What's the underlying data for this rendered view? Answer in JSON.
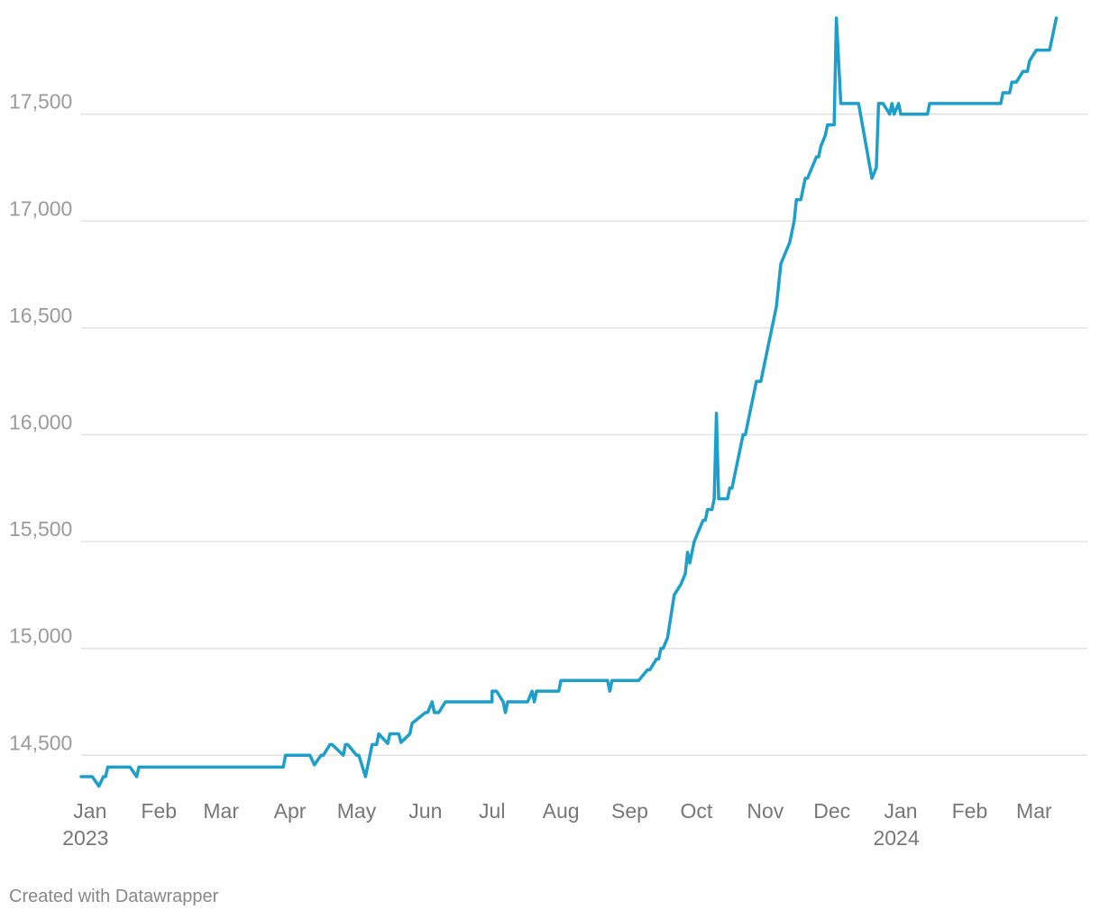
{
  "footer": {
    "credit": "Created with Datawrapper"
  },
  "colors": {
    "line": "#1d9fcb",
    "grid": "#e2e2e2",
    "tick_text": "#9b9b9b"
  },
  "chart_data": {
    "type": "line",
    "title": "",
    "xlabel": "",
    "ylabel": "",
    "ylim": [
      14400,
      17950
    ],
    "yticks": [
      14500,
      15000,
      15500,
      16000,
      16500,
      17000,
      17500
    ],
    "ytick_labels": [
      "14,500",
      "15,000",
      "15,500",
      "16,000",
      "16,500",
      "17,000",
      "17,500"
    ],
    "xrange": [
      "2022-12-28",
      "2024-03-25"
    ],
    "xticks": [
      {
        "date": "2023-01-01",
        "label": "Jan",
        "year": "2023"
      },
      {
        "date": "2023-02-01",
        "label": "Feb",
        "year": ""
      },
      {
        "date": "2023-03-01",
        "label": "Mar",
        "year": ""
      },
      {
        "date": "2023-04-01",
        "label": "Apr",
        "year": ""
      },
      {
        "date": "2023-05-01",
        "label": "May",
        "year": ""
      },
      {
        "date": "2023-06-01",
        "label": "Jun",
        "year": ""
      },
      {
        "date": "2023-07-01",
        "label": "Jul",
        "year": ""
      },
      {
        "date": "2023-08-01",
        "label": "Aug",
        "year": ""
      },
      {
        "date": "2023-09-01",
        "label": "Sep",
        "year": ""
      },
      {
        "date": "2023-10-01",
        "label": "Oct",
        "year": ""
      },
      {
        "date": "2023-11-01",
        "label": "Nov",
        "year": ""
      },
      {
        "date": "2023-12-01",
        "label": "Dec",
        "year": ""
      },
      {
        "date": "2024-01-01",
        "label": "Jan",
        "year": "2024"
      },
      {
        "date": "2024-02-01",
        "label": "Feb",
        "year": ""
      },
      {
        "date": "2024-03-01",
        "label": "Mar",
        "year": ""
      }
    ],
    "grid": true,
    "legend": "none",
    "series": [
      {
        "x": [
          "2022-12-28",
          "2023-01-02",
          "2023-01-05",
          "2023-01-07",
          "2023-01-08",
          "2023-01-09",
          "2023-01-10",
          "2023-01-19",
          "2023-01-22",
          "2023-01-23",
          "2023-01-31",
          "2023-02-28",
          "2023-03-29",
          "2023-03-30",
          "2023-04-05",
          "2023-04-10",
          "2023-04-12",
          "2023-04-15",
          "2023-04-16",
          "2023-04-19",
          "2023-04-20",
          "2023-04-25",
          "2023-04-26",
          "2023-04-27",
          "2023-05-01",
          "2023-05-02",
          "2023-05-05",
          "2023-05-08",
          "2023-05-09",
          "2023-05-10",
          "2023-05-11",
          "2023-05-15",
          "2023-05-16",
          "2023-05-20",
          "2023-05-21",
          "2023-05-25",
          "2023-05-26",
          "2023-06-01",
          "2023-06-02",
          "2023-06-04",
          "2023-06-05",
          "2023-06-07",
          "2023-06-10",
          "2023-07-01",
          "2023-07-01",
          "2023-07-03",
          "2023-07-06",
          "2023-07-07",
          "2023-07-08",
          "2023-07-17",
          "2023-07-19",
          "2023-07-20",
          "2023-07-21",
          "2023-07-31",
          "2023-08-01",
          "2023-08-22",
          "2023-08-23",
          "2023-08-24",
          "2023-09-05",
          "2023-09-09",
          "2023-09-10",
          "2023-09-13",
          "2023-09-14",
          "2023-09-15",
          "2023-09-16",
          "2023-09-18",
          "2023-09-21",
          "2023-09-24",
          "2023-09-26",
          "2023-09-27",
          "2023-09-28",
          "2023-09-30",
          "2023-10-02",
          "2023-10-04",
          "2023-10-05",
          "2023-10-06",
          "2023-10-08",
          "2023-10-09",
          "2023-10-10",
          "2023-10-11",
          "2023-10-14",
          "2023-10-15",
          "2023-10-16",
          "2023-10-17",
          "2023-10-18",
          "2023-10-22",
          "2023-10-23",
          "2023-10-24",
          "2023-10-26",
          "2023-10-28",
          "2023-10-30",
          "2023-11-01",
          "2023-11-03",
          "2023-11-04",
          "2023-11-06",
          "2023-11-08",
          "2023-11-12",
          "2023-11-14",
          "2023-11-15",
          "2023-11-17",
          "2023-11-19",
          "2023-11-20",
          "2023-11-22",
          "2023-11-24",
          "2023-11-25",
          "2023-11-26",
          "2023-11-28",
          "2023-11-29",
          "2023-12-02",
          "2023-12-03",
          "2023-12-04",
          "2023-12-05",
          "2023-12-08",
          "2023-12-09",
          "2023-12-10",
          "2023-12-12",
          "2023-12-13",
          "2023-12-19",
          "2023-12-21",
          "2023-12-22",
          "2023-12-24",
          "2023-12-27",
          "2023-12-28",
          "2023-12-29",
          "2023-12-31",
          "2024-01-01",
          "2024-01-02",
          "2024-01-04",
          "2024-01-13",
          "2024-01-14",
          "2024-02-03",
          "2024-02-04",
          "2024-02-15",
          "2024-02-16",
          "2024-02-17",
          "2024-02-18",
          "2024-02-19",
          "2024-02-20",
          "2024-02-22",
          "2024-02-25",
          "2024-02-27",
          "2024-02-28",
          "2024-03-02",
          "2024-03-03",
          "2024-03-08",
          "2024-03-11"
        ],
        "y": [
          14400,
          14400,
          14355,
          14400,
          14400,
          14445,
          14445,
          14445,
          14400,
          14445,
          14445,
          14445,
          14445,
          14500,
          14500,
          14500,
          14455,
          14500,
          14500,
          14550,
          14550,
          14500,
          14550,
          14550,
          14500,
          14500,
          14400,
          14550,
          14550,
          14550,
          14600,
          14555,
          14600,
          14600,
          14560,
          14600,
          14650,
          14700,
          14700,
          14750,
          14700,
          14700,
          14750,
          14750,
          14800,
          14800,
          14750,
          14700,
          14750,
          14750,
          14800,
          14750,
          14800,
          14800,
          14850,
          14850,
          14800,
          14850,
          14850,
          14900,
          14900,
          14950,
          14950,
          15000,
          15000,
          15050,
          15250,
          15300,
          15350,
          15450,
          15400,
          15500,
          15550,
          15600,
          15600,
          15650,
          15650,
          15700,
          16100,
          15700,
          15700,
          15700,
          15750,
          15750,
          15800,
          16000,
          16000,
          16050,
          16150,
          16250,
          16250,
          16350,
          16450,
          16500,
          16600,
          16800,
          16900,
          17000,
          17100,
          17100,
          17200,
          17200,
          17250,
          17300,
          17300,
          17350,
          17400,
          17450,
          17450,
          17950,
          17750,
          17550,
          17550,
          17550,
          17550,
          17550,
          17550,
          17200,
          17250,
          17550,
          17550,
          17500,
          17550,
          17500,
          17550,
          17500,
          17500,
          17500,
          17500,
          17550,
          17550,
          17550,
          17550,
          17600,
          17600,
          17600,
          17600,
          17650,
          17650,
          17700,
          17700,
          17750,
          17800,
          17800,
          17800,
          17950
        ]
      }
    ]
  }
}
